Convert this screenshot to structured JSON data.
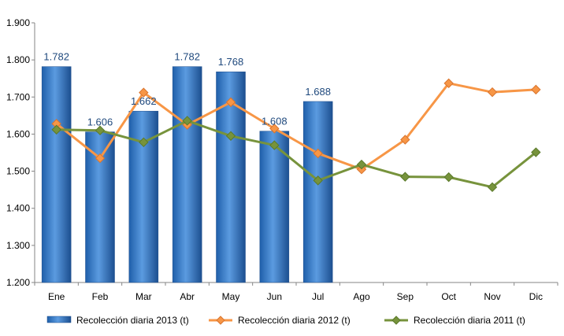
{
  "chart_data": {
    "type": "bar",
    "categories": [
      "Ene",
      "Feb",
      "Mar",
      "Abr",
      "May",
      "Jun",
      "Jul",
      "Ago",
      "Sep",
      "Oct",
      "Nov",
      "Dic"
    ],
    "ylim": [
      1200,
      1900
    ],
    "yticks": [
      1200,
      1300,
      1400,
      1500,
      1600,
      1700,
      1800,
      1900
    ],
    "ytick_labels": [
      "1.200",
      "1.300",
      "1.400",
      "1.500",
      "1.600",
      "1.700",
      "1.800",
      "1.900"
    ],
    "grid": false,
    "legend_position": "bottom",
    "series": [
      {
        "name": "Recolección diaria  2013 (t)",
        "type": "bar",
        "color": "#2E75C8",
        "values": [
          1782,
          1606,
          1662,
          1782,
          1768,
          1608,
          1688,
          null,
          null,
          null,
          null,
          null
        ],
        "data_labels": [
          "1.782",
          "1.606",
          "1.662",
          "1.782",
          "1.768",
          "1.608",
          "1.688",
          null,
          null,
          null,
          null,
          null
        ]
      },
      {
        "name": "Recolección diaria  2012 (t)",
        "type": "line",
        "color": "#F79646",
        "values": [
          1628,
          1535,
          1712,
          1625,
          1686,
          1615,
          1548,
          1505,
          1585,
          1737,
          1713,
          1720
        ]
      },
      {
        "name": "Recolección diaria  2011 (t)",
        "type": "line",
        "color": "#77933C",
        "values": [
          1612,
          1610,
          1578,
          1636,
          1595,
          1570,
          1475,
          1518,
          1485,
          1484,
          1457,
          1551
        ]
      }
    ]
  }
}
